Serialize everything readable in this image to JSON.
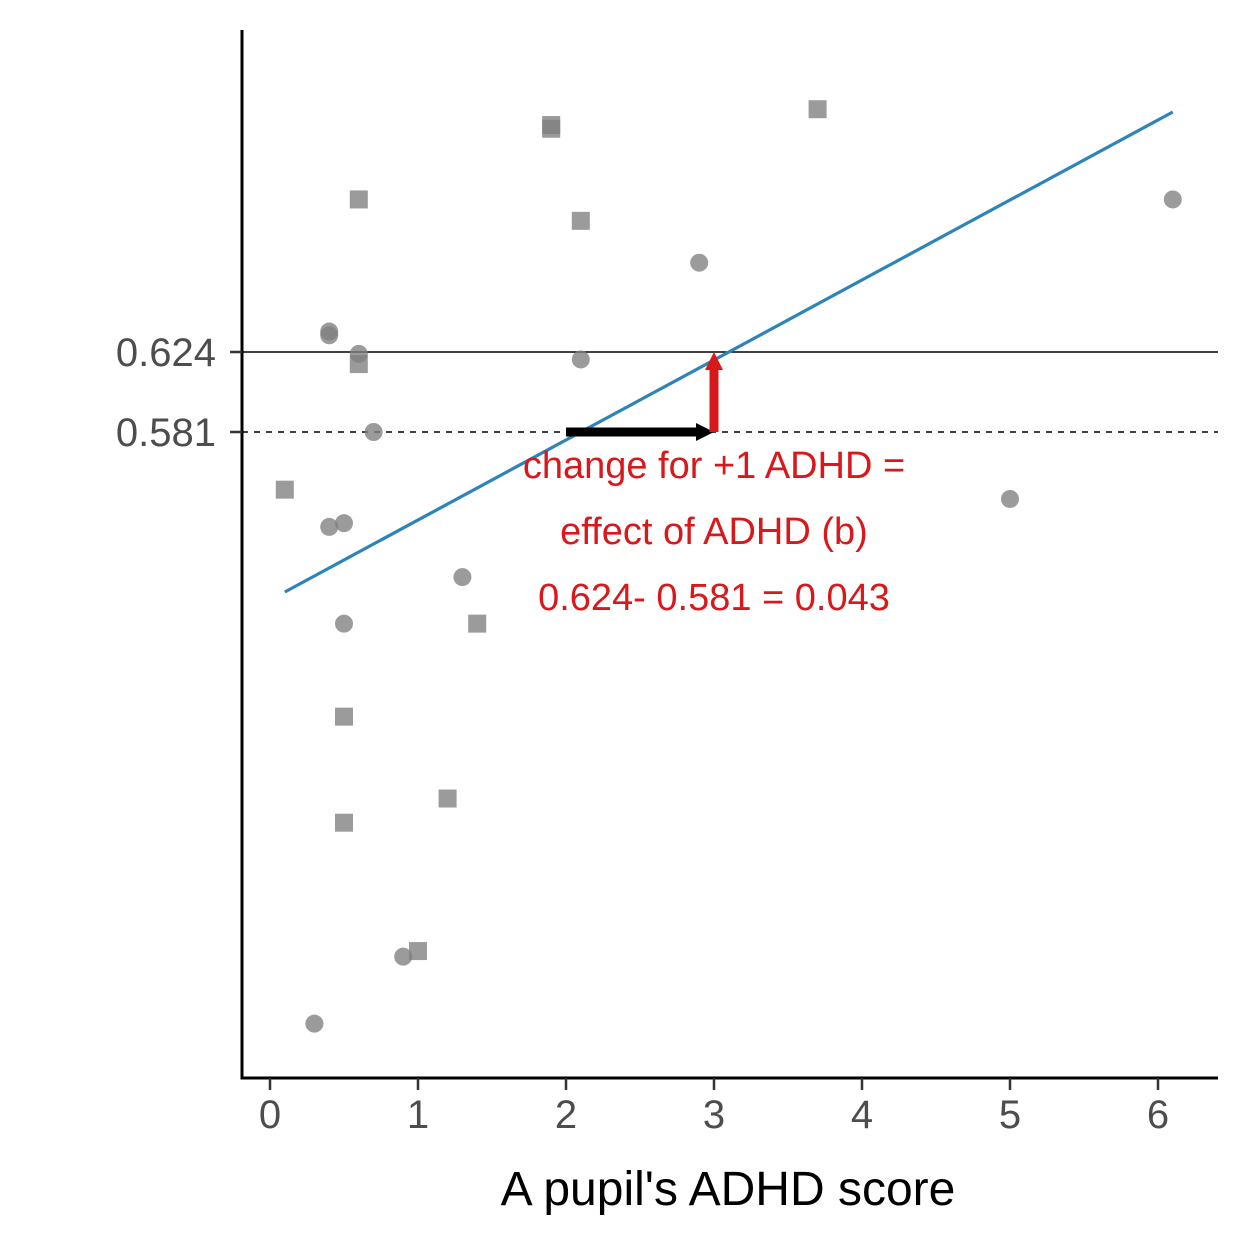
{
  "chart_data": {
    "type": "scatter",
    "xlabel": "A pupil's ADHD score",
    "ylabel": "",
    "xlim": [
      -0.2,
      6.4
    ],
    "x_ticks": [
      0,
      1,
      2,
      3,
      4,
      5,
      6
    ],
    "y_ticks": [
      0.581,
      0.624
    ],
    "y_tick_labels": [
      "0.581",
      "0.624"
    ],
    "grid": false,
    "point_color": "#7f7f7f",
    "line_color": "#2e83b8",
    "annotation_color": "#d7191c",
    "series": [
      {
        "marker": "square",
        "points": [
          [
            1.9,
            0.746
          ],
          [
            1.9,
            0.744
          ],
          [
            3.7,
            0.7545
          ],
          [
            0.6,
            0.706
          ],
          [
            2.1,
            0.6945
          ],
          [
            0.6,
            0.6175
          ],
          [
            0.1,
            0.55
          ],
          [
            1.4,
            0.478
          ],
          [
            0.5,
            0.428
          ],
          [
            1.2,
            0.384
          ],
          [
            0.5,
            0.371
          ],
          [
            1.0,
            0.302
          ]
        ]
      },
      {
        "marker": "circle",
        "points": [
          [
            6.1,
            0.706
          ],
          [
            2.9,
            0.672
          ],
          [
            0.4,
            0.635
          ],
          [
            0.4,
            0.633
          ],
          [
            0.6,
            0.623
          ],
          [
            2.1,
            0.62
          ],
          [
            0.7,
            0.581
          ],
          [
            5.0,
            0.545
          ],
          [
            0.5,
            0.532
          ],
          [
            0.4,
            0.53
          ],
          [
            1.3,
            0.503
          ],
          [
            0.5,
            0.478
          ],
          [
            0.9,
            0.299
          ],
          [
            0.3,
            0.263
          ]
        ]
      }
    ],
    "regression_line": {
      "x": [
        0.1,
        6.1
      ],
      "y": [
        0.495,
        0.753
      ]
    },
    "reference_lines": [
      {
        "y": 0.624,
        "style": "solid"
      },
      {
        "y": 0.581,
        "style": "dashed"
      }
    ],
    "arrows": [
      {
        "color": "black",
        "from": [
          2.0,
          0.581
        ],
        "to": [
          3.0,
          0.581
        ]
      },
      {
        "color": "red",
        "from": [
          3.0,
          0.581
        ],
        "to": [
          3.0,
          0.624
        ]
      }
    ],
    "annotation": {
      "lines": [
        "change for +1 ADHD =",
        "effect of ADHD (b)",
        "0.624- 0.581 = 0.043"
      ]
    }
  }
}
